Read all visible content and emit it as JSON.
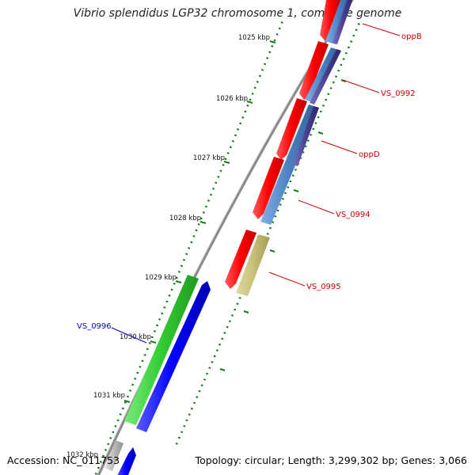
{
  "title": "Vibrio splendidus LGP32 chromosome 1, complete genome",
  "footer": {
    "accession": "Accession: NC_011753",
    "topology": "Topology: circular; Length: 3,299,302 bp; Genes: 3,066"
  },
  "scale": {
    "labels": [
      "1025 kbp",
      "1026 kbp",
      "1027 kbp",
      "1028 kbp",
      "1029 kbp",
      "1030 kbp",
      "1031 kbp",
      "1032 kbp"
    ]
  },
  "genes": [
    {
      "label": "oppB",
      "color": "#cc0000"
    },
    {
      "label": "VS_0992",
      "color": "#cc0000"
    },
    {
      "label": "oppD",
      "color": "#cc0000"
    },
    {
      "label": "VS_0994",
      "color": "#cc0000"
    },
    {
      "label": "VS_0995",
      "color": "#cc0000"
    },
    {
      "label": "VS_0996",
      "color": "#0000cc"
    }
  ],
  "colors": {
    "backbone": "#8a8a8a",
    "tick": "#1a7a1a",
    "cds_reverse": "#ff0000",
    "cds_forward": "#0000ff",
    "orf_steelblue": "#4a7fbf",
    "orf_purple": "#4b3f8f",
    "orf_olive": "#c8c07a",
    "orf_green": "#33cc33",
    "orf_grey": "#bbbbbb"
  }
}
